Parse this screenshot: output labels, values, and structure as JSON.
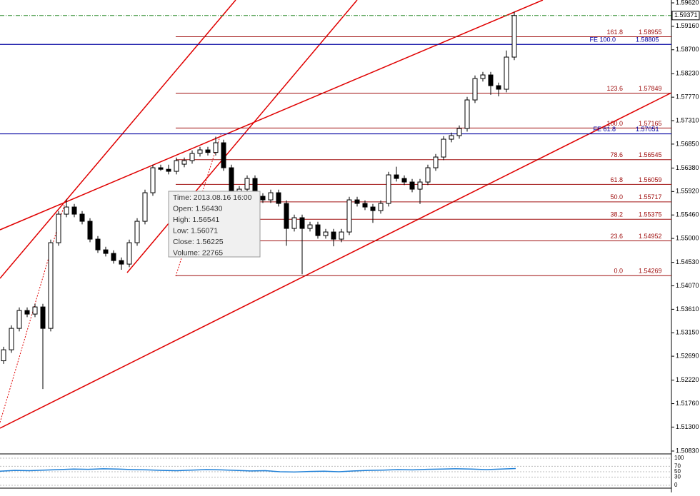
{
  "chart_data": {
    "type": "candlestick",
    "ylim": [
      1.50788,
      1.59676
    ],
    "yticks": [
      {
        "value": 1.5962,
        "label": "1.59620"
      },
      {
        "value": 1.5916,
        "label": "1.59160"
      },
      {
        "value": 1.587,
        "label": "1.58700"
      },
      {
        "value": 1.5823,
        "label": "1.58230"
      },
      {
        "value": 1.5777,
        "label": "1.57770"
      },
      {
        "value": 1.5731,
        "label": "1.57310"
      },
      {
        "value": 1.5685,
        "label": "1.56850"
      },
      {
        "value": 1.5638,
        "label": "1.56380"
      },
      {
        "value": 1.5592,
        "label": "1.55920"
      },
      {
        "value": 1.5546,
        "label": "1.55460"
      },
      {
        "value": 1.55,
        "label": "1.55000"
      },
      {
        "value": 1.5453,
        "label": "1.54530"
      },
      {
        "value": 1.5407,
        "label": "1.54070"
      },
      {
        "value": 1.5361,
        "label": "1.53610"
      },
      {
        "value": 1.5315,
        "label": "1.53150"
      },
      {
        "value": 1.5269,
        "label": "1.52690"
      },
      {
        "value": 1.5222,
        "label": "1.52220"
      },
      {
        "value": 1.5176,
        "label": "1.51760"
      },
      {
        "value": 1.513,
        "label": "1.51300"
      },
      {
        "value": 1.5083,
        "label": "1.50830"
      }
    ],
    "candles": [
      [
        1.526,
        1.52876,
        1.5254,
        1.52816
      ],
      [
        1.52816,
        1.53296,
        1.52756,
        1.53236
      ],
      [
        1.53236,
        1.53646,
        1.53176,
        1.53586
      ],
      [
        1.53586,
        1.53646,
        1.53456,
        1.53516
      ],
      [
        1.53516,
        1.53716,
        1.53456,
        1.53656
      ],
      [
        1.53656,
        1.53716,
        1.52046,
        1.53236
      ],
      [
        1.53236,
        1.54976,
        1.53176,
        1.54916
      ],
      [
        1.54916,
        1.55536,
        1.54856,
        1.55476
      ],
      [
        1.55476,
        1.55766,
        1.55416,
        1.55616
      ],
      [
        1.55616,
        1.55676,
        1.55416,
        1.55476
      ],
      [
        1.55476,
        1.55536,
        1.55276,
        1.55336
      ],
      [
        1.55336,
        1.55396,
        1.54926,
        1.54986
      ],
      [
        1.54986,
        1.55046,
        1.54716,
        1.54776
      ],
      [
        1.54776,
        1.54836,
        1.54646,
        1.54706
      ],
      [
        1.54706,
        1.54766,
        1.54506,
        1.54566
      ],
      [
        1.54566,
        1.54626,
        1.54386,
        1.54496
      ],
      [
        1.54496,
        1.54976,
        1.54436,
        1.54916
      ],
      [
        1.54916,
        1.55396,
        1.54856,
        1.55336
      ],
      [
        1.55336,
        1.55956,
        1.55276,
        1.55896
      ],
      [
        1.55896,
        1.56446,
        1.55836,
        1.56386
      ],
      [
        1.56386,
        1.56446,
        1.56326,
        1.56356
      ],
      [
        1.56356,
        1.56446,
        1.56256,
        1.56316
      ],
      [
        1.56316,
        1.56586,
        1.56256,
        1.56526
      ],
      [
        1.56456,
        1.56586,
        1.56396,
        1.56526
      ],
      [
        1.56526,
        1.56726,
        1.56466,
        1.56666
      ],
      [
        1.56666,
        1.56796,
        1.56606,
        1.56736
      ],
      [
        1.56736,
        1.56796,
        1.56626,
        1.56686
      ],
      [
        1.56686,
        1.56996,
        1.56626,
        1.56876
      ],
      [
        1.56876,
        1.56936,
        1.56326,
        1.56386
      ],
      [
        1.56386,
        1.56446,
        1.55836,
        1.55896
      ],
      [
        1.55896,
        1.56026,
        1.55836,
        1.55966
      ],
      [
        1.55966,
        1.56236,
        1.55906,
        1.56176
      ],
      [
        1.56176,
        1.56236,
        1.55766,
        1.55826
      ],
      [
        1.55826,
        1.55886,
        1.55696,
        1.55756
      ],
      [
        1.55756,
        1.55956,
        1.55696,
        1.55896
      ],
      [
        1.55896,
        1.55956,
        1.55626,
        1.55686
      ],
      [
        1.55686,
        1.55746,
        1.54856,
        1.55196
      ],
      [
        1.55196,
        1.55466,
        1.55136,
        1.55406
      ],
      [
        1.55406,
        1.55466,
        1.54296,
        1.55196
      ],
      [
        1.55196,
        1.55326,
        1.55136,
        1.55266
      ],
      [
        1.55266,
        1.55326,
        1.54996,
        1.55056
      ],
      [
        1.55056,
        1.55186,
        1.54996,
        1.55126
      ],
      [
        1.55126,
        1.55186,
        1.54846,
        1.54986
      ],
      [
        1.54986,
        1.55186,
        1.54926,
        1.55126
      ],
      [
        1.55126,
        1.55816,
        1.55066,
        1.55756
      ],
      [
        1.55756,
        1.55816,
        1.55626,
        1.55686
      ],
      [
        1.55686,
        1.55746,
        1.55556,
        1.55616
      ],
      [
        1.55616,
        1.55676,
        1.55306,
        1.55546
      ],
      [
        1.55546,
        1.55746,
        1.55486,
        1.55686
      ],
      [
        1.55686,
        1.56306,
        1.55626,
        1.56246
      ],
      [
        1.56246,
        1.56406,
        1.56116,
        1.56176
      ],
      [
        1.56176,
        1.56236,
        1.56046,
        1.56106
      ],
      [
        1.56106,
        1.56166,
        1.55906,
        1.55966
      ],
      [
        1.55966,
        1.56166,
        1.55676,
        1.56106
      ],
      [
        1.56106,
        1.56446,
        1.56046,
        1.56386
      ],
      [
        1.56386,
        1.56656,
        1.56326,
        1.56596
      ],
      [
        1.56596,
        1.57006,
        1.56536,
        1.56946
      ],
      [
        1.56946,
        1.57076,
        1.56886,
        1.57016
      ],
      [
        1.57016,
        1.57216,
        1.56956,
        1.57156
      ],
      [
        1.57156,
        1.57776,
        1.57096,
        1.57716
      ],
      [
        1.57716,
        1.58196,
        1.57656,
        1.58136
      ],
      [
        1.58136,
        1.58266,
        1.58076,
        1.58206
      ],
      [
        1.58206,
        1.58266,
        1.57816,
        1.57996
      ],
      [
        1.57996,
        1.58056,
        1.57786,
        1.57926
      ],
      [
        1.57926,
        1.58686,
        1.57866,
        1.58556
      ],
      [
        1.58556,
        1.59446,
        1.58496,
        1.59371
      ]
    ],
    "current_price": 1.59371,
    "fib_levels": [
      {
        "label": "161.8",
        "price": 1.58955,
        "color": "#a01010"
      },
      {
        "label": "FE 100.0",
        "price": 1.58805,
        "color": "#0000a0"
      },
      {
        "label": "123.6",
        "price": 1.57849,
        "color": "#a01010"
      },
      {
        "label": "100.0",
        "price": 1.57165,
        "color": "#a01010"
      },
      {
        "label": "FE 61.8",
        "price": 1.57051,
        "color": "#0000a0"
      },
      {
        "label": "78.6",
        "price": 1.56545,
        "color": "#a01010"
      },
      {
        "label": "61.8",
        "price": 1.56059,
        "color": "#a01010"
      },
      {
        "label": "50.0",
        "price": 1.55717,
        "color": "#a01010"
      },
      {
        "label": "38.2",
        "price": 1.55375,
        "color": "#a01010"
      },
      {
        "label": "23.6",
        "price": 1.54952,
        "color": "#a01010"
      },
      {
        "label": "0.0",
        "price": 1.54269,
        "color": "#a01010"
      }
    ],
    "tooltip": [
      "Time: 2013.08.16 16:00",
      "Open: 1.56430",
      "High: 1.56541",
      "Low:  1.56071",
      "Close: 1.56225",
      "Volume: 22765"
    ],
    "indicator": {
      "ylim": [
        0,
        100
      ],
      "yticks": [
        100,
        70,
        50,
        30,
        0
      ],
      "color": "#1e7fd6",
      "values": [
        52,
        55,
        54,
        56,
        58,
        60,
        59,
        61,
        60,
        58,
        57,
        55,
        54,
        56,
        58,
        57,
        55,
        53,
        54,
        50,
        49,
        51,
        52,
        50,
        53,
        55,
        56,
        58,
        57,
        59,
        60,
        61,
        60,
        58,
        60,
        62
      ]
    }
  }
}
